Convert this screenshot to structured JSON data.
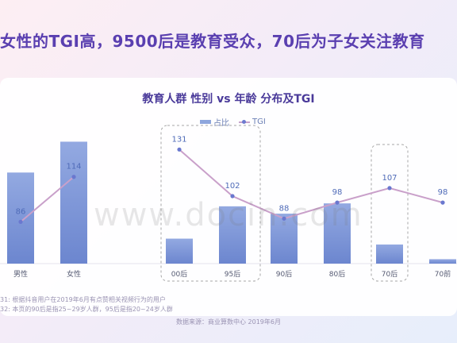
{
  "headline": "女性的TGI高，9500后是教育受众，70后为子女关注教育",
  "watermark": "www.docin.com",
  "footnotes": [
    "31: 根据抖音用户在2019年6月有点赞相关视频行为的用户",
    "32: 本页的90后是指25~29岁人群，95后是指20~24岁人群"
  ],
  "source": "数据来源：商业算数中心 2019年6月",
  "colors": {
    "bar_top": "#93a9e1",
    "bar_bottom": "#6c86cf",
    "line": "#c9a0ca",
    "dot": "#6a78cf",
    "label": "#4f6bb8",
    "box": "#a7a7a7"
  },
  "chart_data": {
    "type": "bar",
    "title": "教育人群 性别 vs 年龄 分布及TGI",
    "legend": {
      "bar": "占比",
      "line": "TGI"
    },
    "categories": [
      "男性",
      "女性",
      "00后",
      "95后",
      "90后",
      "80后",
      "70后",
      "70前"
    ],
    "bar_share": [
      0.62,
      0.83,
      0.17,
      0.39,
      0.34,
      0.41,
      0.13,
      0.03
    ],
    "tgi": [
      86,
      114,
      131,
      102,
      88,
      98,
      107,
      98
    ],
    "groups": [
      [
        "男性",
        "女性"
      ],
      [
        "00后",
        "95后",
        "90后",
        "80后",
        "70后",
        "70前"
      ]
    ],
    "highlighted": [
      "00后",
      "95后",
      "70后"
    ],
    "ylabel": "",
    "xlabel": "",
    "tgi_range": [
      60,
      145
    ]
  }
}
